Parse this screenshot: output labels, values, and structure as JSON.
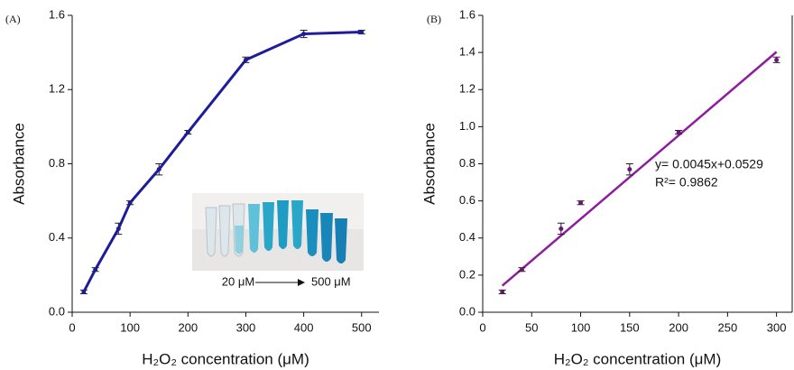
{
  "chart_data": [
    {
      "type": "line",
      "panel_label": "(A)",
      "color": "#1c1c9c",
      "x_label": "H₂O₂ concentration (μM)",
      "y_label": "Absorbance",
      "x": [
        20,
        40,
        80,
        100,
        150,
        200,
        300,
        400,
        500
      ],
      "values": [
        0.11,
        0.23,
        0.45,
        0.59,
        0.77,
        0.97,
        1.36,
        1.5,
        1.51
      ],
      "errors": [
        0.01,
        0.01,
        0.03,
        0.01,
        0.03,
        0.01,
        0.015,
        0.02,
        0.01
      ],
      "xlim": [
        0,
        530
      ],
      "ylim": [
        0,
        1.6
      ],
      "xticks": [
        0,
        100,
        200,
        300,
        400,
        500
      ],
      "yticks": [
        {
          "value": 0,
          "label": "0.0"
        },
        0.4,
        0.8,
        1.2,
        1.6
      ],
      "inset_labels": [
        "20 μM",
        "500 μM"
      ]
    },
    {
      "type": "scatter",
      "panel_label": "(B)",
      "color": "#6b1670",
      "fit_color": "#8e1c9e",
      "x_label": "H₂O₂ concentration (μM)",
      "y_label": "Absorbance",
      "x": [
        20,
        40,
        80,
        100,
        150,
        200,
        300
      ],
      "values": [
        0.11,
        0.23,
        0.45,
        0.59,
        0.77,
        0.97,
        1.36
      ],
      "errors": [
        0.01,
        0.01,
        0.03,
        0.01,
        0.03,
        0.01,
        0.015
      ],
      "fit": {
        "x": [
          20,
          300
        ],
        "values": [
          0.143,
          1.403
        ]
      },
      "xlim": [
        0,
        316
      ],
      "ylim": [
        0,
        1.6
      ],
      "xticks": [
        0,
        50,
        100,
        150,
        200,
        250,
        300
      ],
      "yticks": [
        {
          "value": 0,
          "label": "0.0"
        },
        0.2,
        0.4,
        0.6,
        0.8,
        {
          "value": 1,
          "label": "1.0"
        },
        1.2,
        1.4,
        1.6
      ],
      "annotations": [
        "y= 0.0045x+0.0529",
        "R²= 0.9862"
      ]
    }
  ]
}
